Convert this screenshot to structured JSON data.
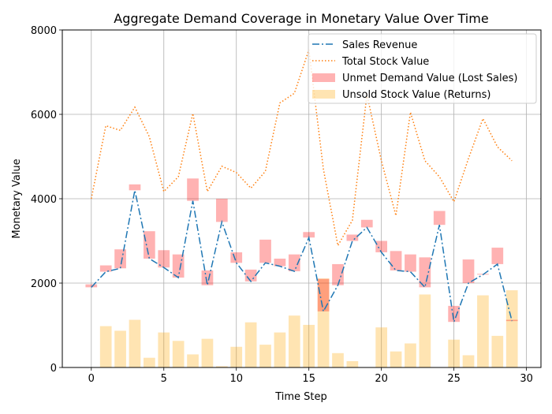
{
  "chart_data": {
    "type": "bar+line",
    "title": "Aggregate Demand Coverage in Monetary Value Over Time",
    "xlabel": "Time Step",
    "ylabel": "Monetary Value",
    "xlim": [
      -2,
      31
    ],
    "ylim": [
      0,
      8000
    ],
    "xticks": [
      0,
      5,
      10,
      15,
      20,
      25,
      30
    ],
    "yticks": [
      0,
      2000,
      4000,
      6000,
      8000
    ],
    "grid": true,
    "legend_position": "top-right",
    "x": [
      0,
      1,
      2,
      3,
      4,
      5,
      6,
      7,
      8,
      9,
      10,
      11,
      12,
      13,
      14,
      15,
      16,
      17,
      18,
      19,
      20,
      21,
      22,
      23,
      24,
      25,
      26,
      27,
      28,
      29
    ],
    "series": [
      {
        "name": "Sales Revenue",
        "kind": "line",
        "style": "dashdot",
        "color": "#1f77b4",
        "values": [
          1900,
          2270,
          2350,
          4200,
          2580,
          2370,
          2130,
          3950,
          1950,
          3450,
          2480,
          2040,
          2480,
          2400,
          2280,
          3080,
          1330,
          1950,
          3000,
          3320,
          2730,
          2300,
          2270,
          1900,
          3380,
          1080,
          2000,
          2200,
          2450,
          1100
        ]
      },
      {
        "name": "Total Stock Value",
        "kind": "line",
        "style": "dotted",
        "color": "#ff7f0e",
        "values": [
          4000,
          5730,
          5620,
          6170,
          5470,
          4170,
          4520,
          6020,
          4170,
          4770,
          4620,
          4250,
          4650,
          6270,
          6500,
          7530,
          4700,
          2890,
          3490,
          6470,
          4900,
          3600,
          6050,
          4900,
          4520,
          3930,
          4950,
          5900,
          5230,
          4900
        ]
      },
      {
        "name": "Unmet Demand Value (Lost Sales)",
        "kind": "floating-bar",
        "color": "#ff0000",
        "opacity": 0.3,
        "values": [
          [
            1900,
            1970
          ],
          [
            2270,
            2420
          ],
          [
            2350,
            2800
          ],
          [
            4200,
            4340
          ],
          [
            2580,
            3230
          ],
          [
            2370,
            2780
          ],
          [
            2130,
            2680
          ],
          [
            3950,
            4480
          ],
          [
            1950,
            2300
          ],
          [
            3450,
            4000
          ],
          [
            2480,
            2730
          ],
          [
            2040,
            2320
          ],
          [
            2480,
            3030
          ],
          [
            2400,
            2580
          ],
          [
            2280,
            2680
          ],
          [
            3080,
            3210
          ],
          [
            1330,
            2100
          ],
          [
            1950,
            2450
          ],
          [
            3000,
            3150
          ],
          [
            3320,
            3500
          ],
          [
            2730,
            3000
          ],
          [
            2300,
            2760
          ],
          [
            2270,
            2680
          ],
          [
            1900,
            2610
          ],
          [
            3380,
            3710
          ],
          [
            1080,
            1460
          ],
          [
            2000,
            2560
          ],
          [
            2200,
            2220
          ],
          [
            2450,
            2840
          ],
          [
            1100,
            1130
          ]
        ]
      },
      {
        "name": "Unsold Stock Value (Returns)",
        "kind": "bar",
        "color": "#ffa500",
        "opacity": 0.3,
        "values": [
          0,
          980,
          870,
          1130,
          230,
          830,
          630,
          310,
          680,
          30,
          490,
          1070,
          540,
          830,
          1230,
          1010,
          2110,
          340,
          150,
          0,
          950,
          380,
          570,
          1730,
          0,
          660,
          290,
          1710,
          750,
          1830
        ]
      }
    ]
  }
}
